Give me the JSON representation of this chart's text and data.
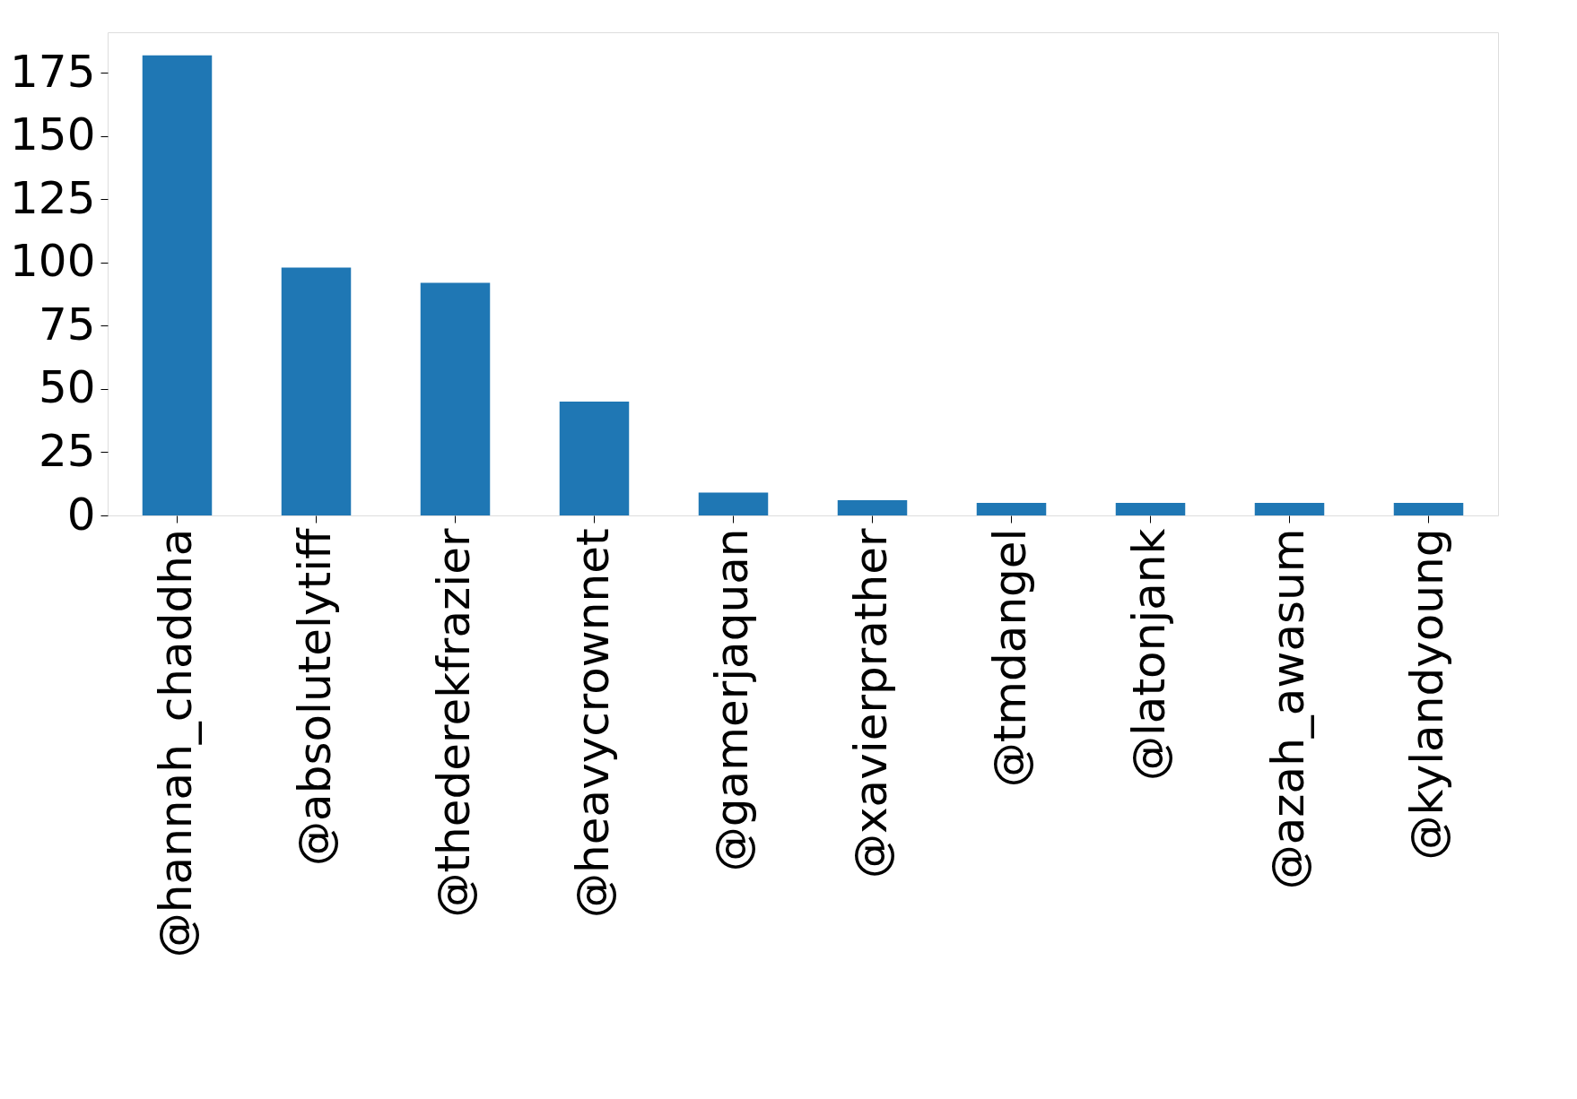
{
  "chart_data": {
    "type": "bar",
    "categories": [
      "@hannah_chaddha",
      "@absolutelytiff",
      "@thederekfrazier",
      "@heavycrownnet",
      "@gamerjaquan",
      "@xavierprather",
      "@tmdangel",
      "@latonjank",
      "@azah_awasum",
      "@kylandyoung"
    ],
    "values": [
      182,
      98,
      92,
      45,
      9,
      6,
      5,
      5,
      5,
      5
    ],
    "color": "#1f77b4",
    "ylim": [
      0,
      191.1
    ],
    "yticks": [
      0,
      25,
      50,
      75,
      100,
      125,
      150,
      175
    ],
    "grid": false
  }
}
